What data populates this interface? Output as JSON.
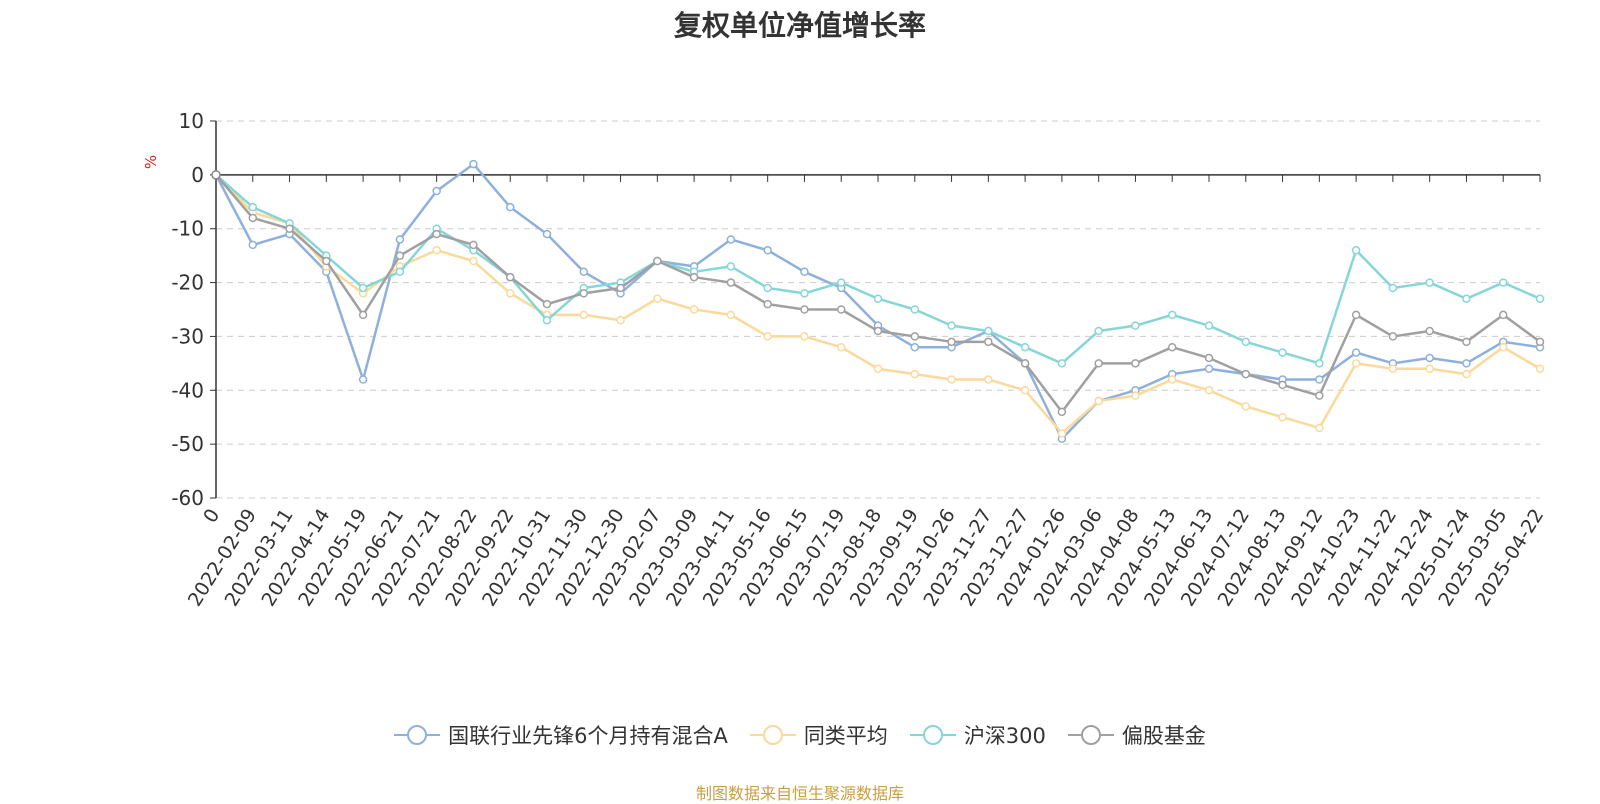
{
  "chart_data": {
    "type": "line",
    "title": "复权单位净值增长率",
    "ylabel": "%",
    "ylim": [
      -60,
      10
    ],
    "yticks": [
      10,
      0,
      -10,
      -20,
      -30,
      -40,
      -50,
      -60
    ],
    "grid": "dashed horizontal",
    "legend": "bottom-center",
    "x_categories": [
      "0",
      "2022-02-09",
      "2022-03-11",
      "2022-04-14",
      "2022-05-19",
      "2022-06-21",
      "2022-07-21",
      "2022-08-22",
      "2022-09-22",
      "2022-10-31",
      "2022-11-30",
      "2022-12-30",
      "2023-02-07",
      "2023-03-09",
      "2023-04-11",
      "2023-05-16",
      "2023-06-15",
      "2023-07-19",
      "2023-08-18",
      "2023-09-19",
      "2023-10-26",
      "2023-11-27",
      "2023-12-27",
      "2024-01-26",
      "2024-03-06",
      "2024-04-08",
      "2024-05-13",
      "2024-06-13",
      "2024-07-12",
      "2024-08-13",
      "2024-09-12",
      "2024-10-23",
      "2024-11-22",
      "2024-12-24",
      "2025-01-24",
      "2025-03-05",
      "2025-04-22"
    ],
    "series": [
      {
        "name": "国联行业先锋6个月持有混合A",
        "color": "#8EB0DD",
        "values": [
          0,
          -13,
          -11,
          -18,
          -38,
          -12,
          -3,
          2,
          -6,
          -11,
          -18,
          -22,
          -16,
          -17,
          -12,
          -14,
          -18,
          -21,
          -28,
          -32,
          -32,
          -29,
          -35,
          -49,
          -42,
          -40,
          -37,
          -36,
          -37,
          -38,
          -38,
          -33,
          -35,
          -34,
          -35,
          -31,
          -32
        ]
      },
      {
        "name": "同类平均",
        "color": "#FBD99A",
        "values": [
          0,
          -7,
          -9,
          -17,
          -22,
          -17,
          -14,
          -16,
          -22,
          -26,
          -26,
          -27,
          -23,
          -25,
          -26,
          -30,
          -30,
          -32,
          -36,
          -37,
          -38,
          -38,
          -40,
          -48,
          -42,
          -41,
          -38,
          -40,
          -43,
          -45,
          -47,
          -35,
          -36,
          -36,
          -37,
          -32,
          -36
        ]
      },
      {
        "name": "沪深300",
        "color": "#86D6D8",
        "values": [
          0,
          -6,
          -9,
          -15,
          -21,
          -18,
          -10,
          -14,
          -19,
          -27,
          -21,
          -20,
          -16,
          -18,
          -17,
          -21,
          -22,
          -20,
          -23,
          -25,
          -28,
          -29,
          -32,
          -35,
          -29,
          -28,
          -26,
          -28,
          -31,
          -33,
          -35,
          -14,
          -21,
          -20,
          -23,
          -20,
          -23
        ]
      },
      {
        "name": "偏股基金",
        "color": "#A0A0A0",
        "values": [
          0,
          -8,
          -10,
          -16,
          -26,
          -15,
          -11,
          -13,
          -19,
          -24,
          -22,
          -21,
          -16,
          -19,
          -20,
          -24,
          -25,
          -25,
          -29,
          -30,
          -31,
          -31,
          -35,
          -44,
          -35,
          -35,
          -32,
          -34,
          -37,
          -39,
          -41,
          -26,
          -30,
          -29,
          -31,
          -26,
          -31
        ]
      }
    ]
  },
  "legend_items": [
    {
      "label": "国联行业先锋6个月持有混合A"
    },
    {
      "label": "同类平均"
    },
    {
      "label": "沪深300"
    },
    {
      "label": "偏股基金"
    }
  ],
  "source_text": "制图数据来自恒生聚源数据库",
  "colors": {
    "source": "#C8A040",
    "ylabel": "#DD2222",
    "axis": "#333333",
    "grid": "#CCCCCC"
  }
}
